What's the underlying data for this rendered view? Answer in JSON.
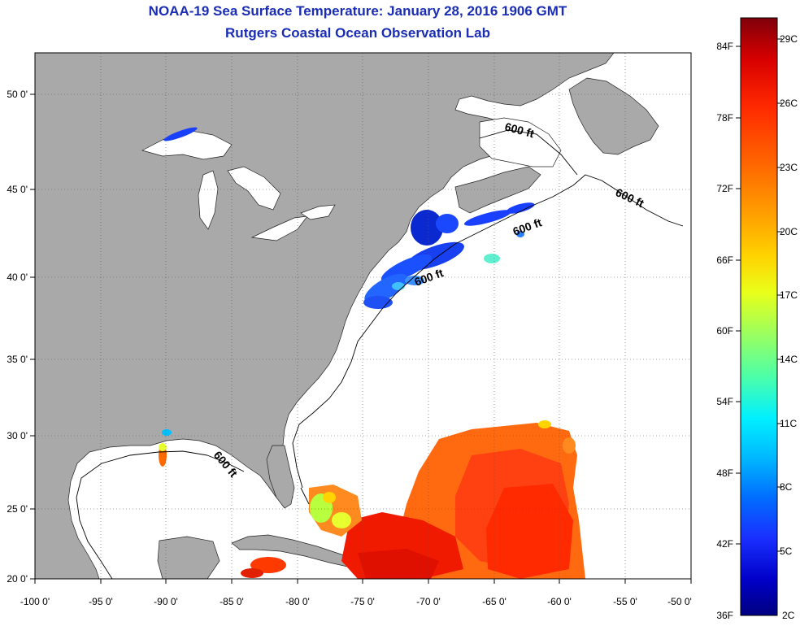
{
  "title": "NOAA-19 Sea Surface Temperature:  January 28, 2016 1906 GMT",
  "subtitle": "Rutgers Coastal Ocean Observation Lab",
  "latitude_labels": [
    "50 0'",
    "45 0'",
    "40 0'",
    "35 0'",
    "30 0'",
    "25 0'",
    "20 0'"
  ],
  "longitude_labels": [
    "-100 0'",
    "-95 0'",
    "-90 0'",
    "-85 0'",
    "-80 0'",
    "-75 0'",
    "-70 0'",
    "-65 0'",
    "-60 0'",
    "-55 0'",
    "-50 0'"
  ],
  "contour_label": "600 ft",
  "colorbar": {
    "fahrenheit_labels": [
      "84F",
      "78F",
      "72F",
      "66F",
      "60F",
      "54F",
      "48F",
      "42F",
      "36F"
    ],
    "celsius_labels": [
      "29C",
      "26C",
      "23C",
      "20C",
      "17C",
      "14C",
      "11C",
      "8C",
      "5C",
      "2C"
    ],
    "colors": [
      "#80000a",
      "#d80000",
      "#ff2a00",
      "#ff6a00",
      "#ffa000",
      "#ffd400",
      "#e8ff1a",
      "#9aff60",
      "#4dffa8",
      "#00f0ff",
      "#00b4ff",
      "#0070ff",
      "#1a30ff",
      "#0000c8",
      "#000080"
    ]
  },
  "colors": {
    "land": "#a9a9a9",
    "water": "#ffffff",
    "title": "#1a2db4",
    "grid": "#555555"
  }
}
